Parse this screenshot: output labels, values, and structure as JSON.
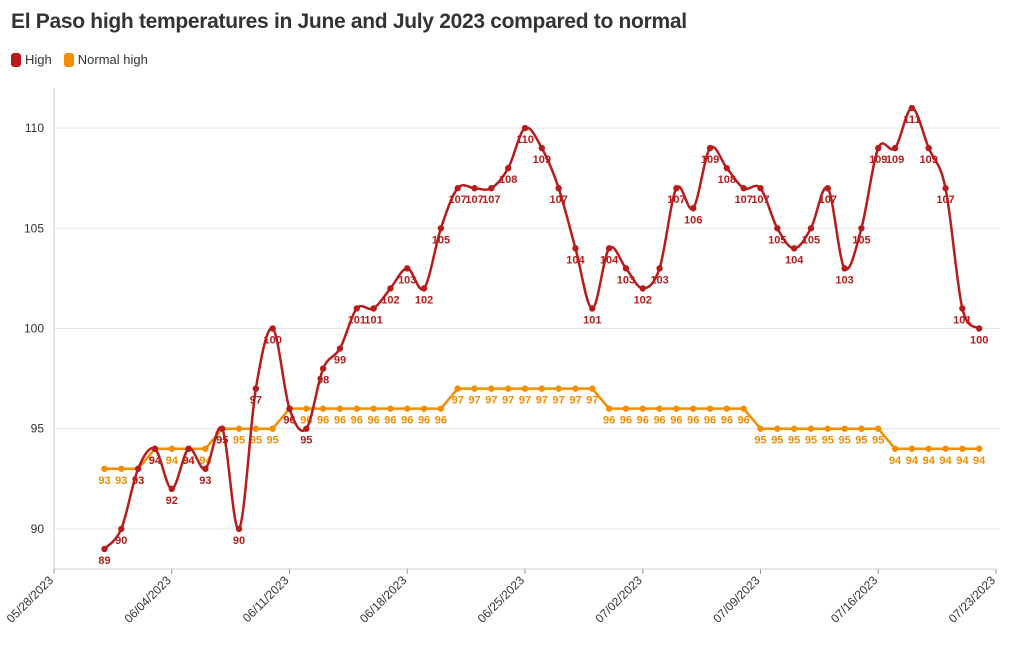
{
  "chart_data": {
    "type": "line",
    "title": "El Paso high temperatures in June and July 2023 compared to normal",
    "xlabel": "",
    "ylabel": "",
    "ylim": [
      88,
      112
    ],
    "yticks": [
      90,
      95,
      100,
      105,
      110
    ],
    "xrange": [
      "05/28/2023",
      "07/23/2023"
    ],
    "xticks": [
      "05/28/2023",
      "06/04/2023",
      "06/11/2023",
      "06/18/2023",
      "06/25/2023",
      "07/02/2023",
      "07/09/2023",
      "07/16/2023",
      "07/23/2023"
    ],
    "grid": true,
    "legend_position": "top-left",
    "start_date": "05/31/2023",
    "series": [
      {
        "name": "High",
        "color": "#b71c1c",
        "values": [
          89,
          90,
          93,
          94,
          92,
          94,
          93,
          95,
          90,
          97,
          100,
          96,
          95,
          98,
          99,
          101,
          101,
          102,
          103,
          102,
          105,
          107,
          107,
          107,
          108,
          110,
          109,
          107,
          104,
          101,
          104,
          103,
          102,
          103,
          107,
          106,
          109,
          108,
          107,
          107,
          105,
          104,
          105,
          107,
          103,
          105,
          109,
          109,
          111,
          109,
          107,
          101,
          100
        ]
      },
      {
        "name": "Normal high",
        "color": "#f28e00",
        "values": [
          93,
          93,
          93,
          94,
          94,
          94,
          94,
          95,
          95,
          95,
          95,
          96,
          96,
          96,
          96,
          96,
          96,
          96,
          96,
          96,
          96,
          97,
          97,
          97,
          97,
          97,
          97,
          97,
          97,
          97,
          96,
          96,
          96,
          96,
          96,
          96,
          96,
          96,
          96,
          95,
          95,
          95,
          95,
          95,
          95,
          95,
          95,
          94,
          94,
          94,
          94,
          94,
          94
        ]
      }
    ]
  }
}
